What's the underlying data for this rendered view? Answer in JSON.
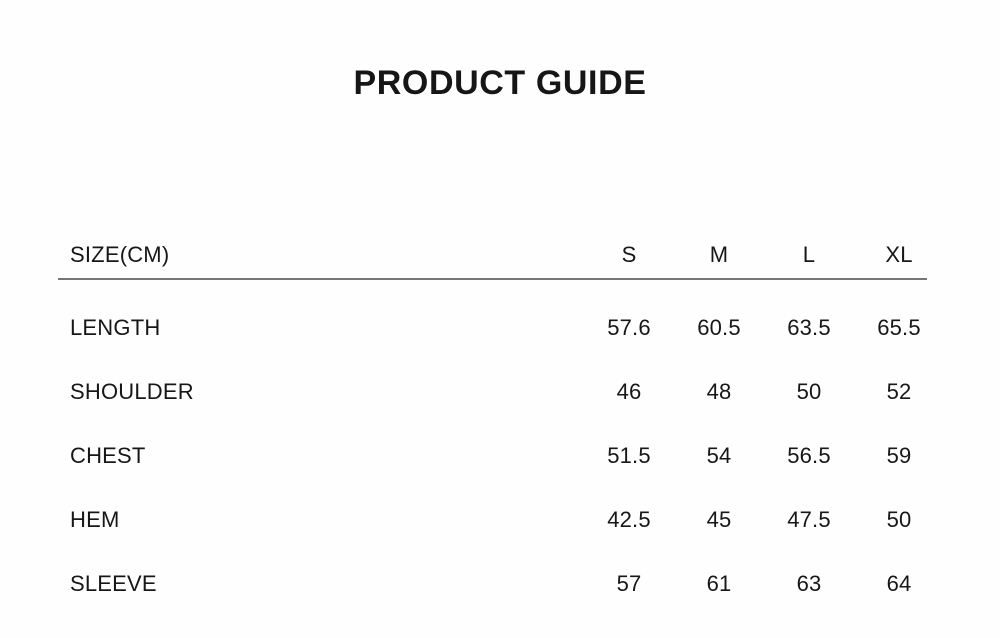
{
  "page": {
    "background_color": "#fefefe",
    "text_color": "#171717",
    "divider_color": "#757575"
  },
  "title": "PRODUCT GUIDE",
  "size_chart": {
    "unit_label": "SIZE(CM)",
    "size_headers": [
      "S",
      "M",
      "L",
      "XL"
    ],
    "rows": [
      {
        "label": "LENGTH",
        "values": [
          "57.6",
          "60.5",
          "63.5",
          "65.5"
        ]
      },
      {
        "label": "SHOULDER",
        "values": [
          "46",
          "48",
          "50",
          "52"
        ]
      },
      {
        "label": "CHEST",
        "values": [
          "51.5",
          "54",
          "56.5",
          "59"
        ]
      },
      {
        "label": "HEM",
        "values": [
          "42.5",
          "45",
          "47.5",
          "50"
        ]
      },
      {
        "label": "SLEEVE",
        "values": [
          "57",
          "61",
          "63",
          "64"
        ]
      }
    ]
  }
}
